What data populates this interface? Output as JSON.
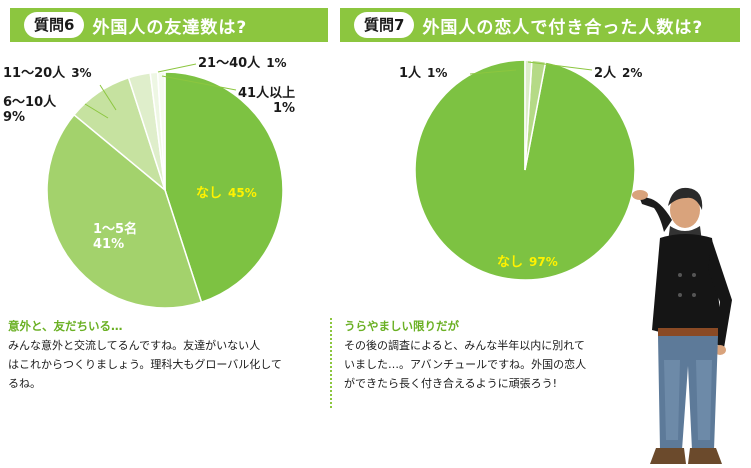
{
  "q6": {
    "badge": "質問6",
    "title": "外国人の友達数は?",
    "chart_data": {
      "type": "pie",
      "title": "外国人の友達数は?",
      "slices": [
        {
          "label": "なし",
          "value": 45,
          "value_text": "45%",
          "color": "#7dc242"
        },
        {
          "label": "1～5名",
          "value": 41,
          "value_text": "41%",
          "color": "#a3d26c"
        },
        {
          "label": "6～10人",
          "value": 9,
          "value_text": "9%",
          "color": "#c6e2a0"
        },
        {
          "label": "11～20人",
          "value": 3,
          "value_text": "3%",
          "color": "#dfeecb"
        },
        {
          "label": "21～40人",
          "value": 1,
          "value_text": "1%",
          "color": "#eef7e4"
        },
        {
          "label": "41人以上",
          "value": 1,
          "value_text": "1%",
          "color": "#f6fbf0"
        }
      ]
    },
    "comment": {
      "title": "意外と、友だちいる…",
      "lines": [
        "みんな意外と交流してるんですね。友達がいない人",
        "はこれからつくりましょう。理科大もグローバル化して",
        "るね。"
      ]
    }
  },
  "q7": {
    "badge": "質問7",
    "title": "外国人の恋人で付き合った人数は?",
    "chart_data": {
      "type": "pie",
      "title": "外国人の恋人で付き合った人数は?",
      "slices": [
        {
          "label": "なし",
          "value": 97,
          "value_text": "97%",
          "color": "#7dc242"
        },
        {
          "label": "2人",
          "value": 2,
          "value_text": "2%",
          "color": "#b5da86"
        },
        {
          "label": "1人",
          "value": 1,
          "value_text": "1%",
          "color": "#dcedc8"
        }
      ]
    },
    "comment": {
      "title": "うらやましい限りだが",
      "lines": [
        "その後の調査によると、みんな半年以内に別れて",
        "いました…。アバンチュールですね。外国の恋人",
        "ができたら長く付き合えるように頑張ろう!"
      ]
    }
  },
  "colors": {
    "accent": "#8cc63f",
    "comment_title": "#6ab023",
    "inside_highlight": "#fff200"
  }
}
